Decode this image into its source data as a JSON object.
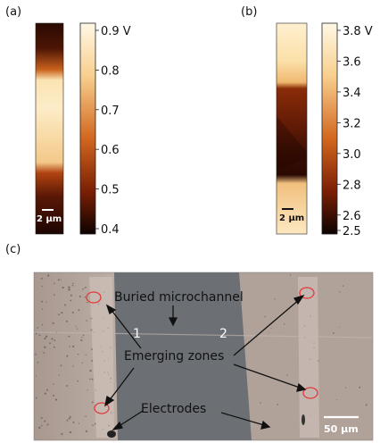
{
  "panels": [
    {
      "label": "(a)"
    },
    {
      "label": "(b)"
    },
    {
      "label": "(c)"
    }
  ],
  "panel_a": {
    "scalebar": "2 µm",
    "colorbar_ticks": [
      "0.9 V",
      "0.8",
      "0.7",
      "0.6",
      "0.5",
      "0.4"
    ],
    "colorbar_values": [
      0.9,
      0.8,
      0.7,
      0.6,
      0.5,
      0.4
    ]
  },
  "panel_b": {
    "scalebar": "2 µm",
    "colorbar_ticks": [
      "3.8 V",
      "3.6",
      "3.4",
      "3.2",
      "3.0",
      "2.8",
      "2.6",
      "2.5"
    ],
    "colorbar_values": [
      3.8,
      3.6,
      3.4,
      3.2,
      3.0,
      2.8,
      2.6,
      2.5
    ]
  },
  "panel_c": {
    "labels": {
      "buried": "Buried microchannel",
      "one": "1",
      "two": "2",
      "emerging": "Emerging zones",
      "electrodes": "Electrodes",
      "scalebar": "50 µm"
    }
  },
  "colors": {
    "afm_dark": "#1a0500",
    "afm_mid": "#b2400e",
    "afm_light": "#fde8bf",
    "channel": "#6e7175",
    "substrate": "#b4a49a",
    "circle": "#e23a3a"
  }
}
